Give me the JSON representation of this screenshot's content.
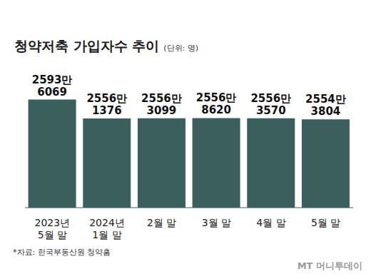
{
  "chart_data": {
    "type": "bar",
    "title": "청약저축 가입자수 추이",
    "subtitle": "(단위: 명)",
    "categories": [
      "2023년\n5월 말",
      "2024년\n1월 말",
      "2월 말",
      "3월 말",
      "4월 말",
      "5월 말"
    ],
    "values": [
      25936069,
      25561376,
      25563099,
      25568620,
      25563570,
      25543804
    ],
    "value_labels": [
      "2593만\n6069",
      "2556만\n1376",
      "2556만\n3099",
      "2556만\n8620",
      "2556만\n3570",
      "2554만\n3804"
    ],
    "data_labels": true,
    "color": "#3b5f5d",
    "ylim": [
      23780000,
      26500000
    ],
    "tick_labels": "x",
    "grid": false,
    "annotations": [
      "*자료: 한국부동산원 청약홈",
      "MT 머니투데이"
    ]
  }
}
